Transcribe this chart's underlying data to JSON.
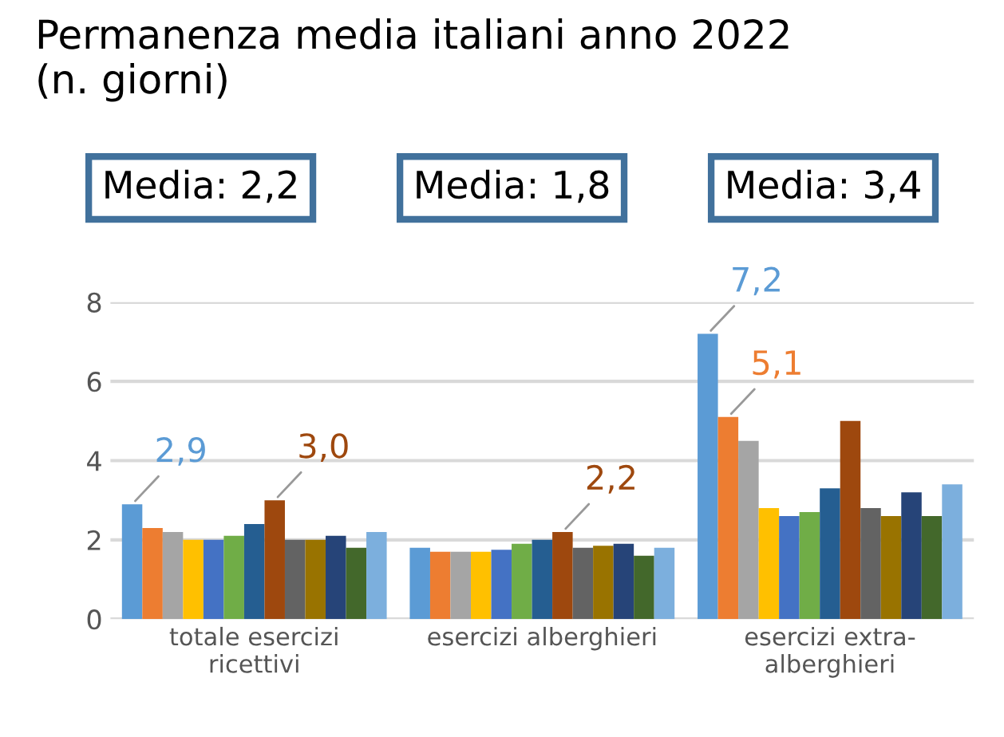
{
  "chart_data": {
    "type": "bar",
    "title": "Permanenza media italiani anno 2022\n(n. giorni)",
    "annotations": [
      "Media: 2,2",
      "Media: 1,8",
      "Media: 3,4"
    ],
    "categories": [
      "totale esercizi\nricettivi",
      "esercizi alberghieri",
      "esercizi extra-\nalberghieri"
    ],
    "ylim": [
      0,
      8
    ],
    "yticks": [
      0,
      2,
      4,
      6,
      8
    ],
    "grid": "y",
    "series": [
      {
        "color": "#5b9bd5",
        "values": [
          2.9,
          1.8,
          7.2
        ],
        "value_labels": [
          "2,9",
          null,
          "7,2"
        ]
      },
      {
        "color": "#ed7d31",
        "values": [
          2.3,
          1.7,
          5.1
        ],
        "value_labels": [
          null,
          null,
          "5,1"
        ]
      },
      {
        "color": "#a5a5a5",
        "values": [
          2.2,
          1.7,
          4.5
        ]
      },
      {
        "color": "#ffc000",
        "values": [
          2.0,
          1.7,
          2.8
        ]
      },
      {
        "color": "#4472c4",
        "values": [
          2.0,
          1.75,
          2.6
        ]
      },
      {
        "color": "#70ad47",
        "values": [
          2.1,
          1.9,
          2.7
        ]
      },
      {
        "color": "#255e91",
        "values": [
          2.4,
          2.0,
          3.3
        ]
      },
      {
        "color": "#9e480e",
        "values": [
          3.0,
          2.2,
          5.0
        ],
        "value_labels": [
          "3,0",
          "2,2",
          null
        ]
      },
      {
        "color": "#636363",
        "values": [
          2.0,
          1.8,
          2.8
        ]
      },
      {
        "color": "#997300",
        "values": [
          2.0,
          1.85,
          2.6
        ]
      },
      {
        "color": "#264478",
        "values": [
          2.1,
          1.9,
          3.2
        ]
      },
      {
        "color": "#43682b",
        "values": [
          1.8,
          1.6,
          2.6
        ]
      },
      {
        "color": "#7cafdd",
        "values": [
          2.2,
          1.8,
          3.4
        ]
      }
    ]
  }
}
